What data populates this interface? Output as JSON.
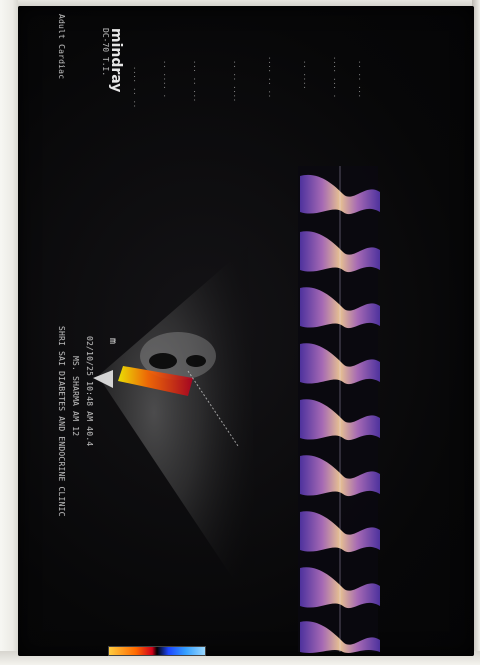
{
  "screen": {
    "brand": "mindray",
    "header_lines": [
      "SHRI SAI DIABETES AND ENDOCRINE CLINIC",
      "MS. SHARMA AM 12",
      "02/10/25 10:48 AM 40.4"
    ],
    "brand_sub": "DC-70 T.I.",
    "preset": "Adult Cardiac",
    "scale_marker": "m",
    "colors": {
      "spectrum_core": "#ffe6b0",
      "spectrum_mid": "#ff9f5a",
      "spectrum_edge": "#7a3cc7",
      "sector_flow": "#ff5a00"
    }
  }
}
